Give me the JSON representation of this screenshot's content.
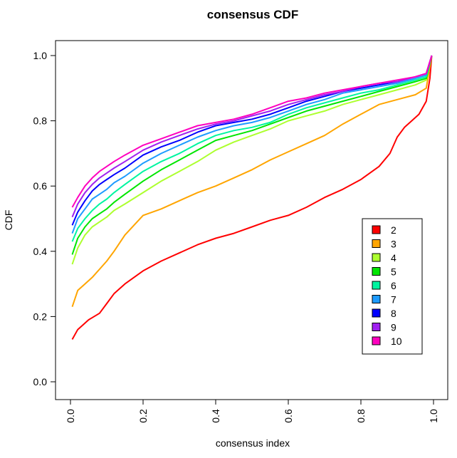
{
  "chart_data": {
    "type": "line",
    "title": "consensus CDF",
    "xlabel": "consensus index",
    "ylabel": "CDF",
    "xlim": [
      0,
      1
    ],
    "ylim": [
      0,
      1
    ],
    "x_ticks": [
      "0.0",
      "0.2",
      "0.4",
      "0.6",
      "0.8",
      "1.0"
    ],
    "y_ticks": [
      "0.0",
      "0.2",
      "0.4",
      "0.6",
      "0.8",
      "1.0"
    ],
    "legend_position": "right-center",
    "series": [
      {
        "name": "2",
        "color": "#ff0000",
        "x": [
          0.005,
          0.02,
          0.05,
          0.08,
          0.1,
          0.12,
          0.15,
          0.2,
          0.25,
          0.3,
          0.35,
          0.4,
          0.45,
          0.5,
          0.55,
          0.6,
          0.65,
          0.7,
          0.75,
          0.8,
          0.85,
          0.88,
          0.9,
          0.92,
          0.94,
          0.96,
          0.98,
          0.99,
          0.995
        ],
        "y": [
          0.13,
          0.16,
          0.19,
          0.21,
          0.24,
          0.27,
          0.3,
          0.34,
          0.37,
          0.395,
          0.42,
          0.44,
          0.455,
          0.475,
          0.495,
          0.51,
          0.535,
          0.565,
          0.59,
          0.62,
          0.66,
          0.7,
          0.75,
          0.78,
          0.8,
          0.82,
          0.86,
          0.93,
          1.0
        ]
      },
      {
        "name": "3",
        "color": "#ffa500",
        "x": [
          0.005,
          0.02,
          0.04,
          0.06,
          0.08,
          0.1,
          0.12,
          0.15,
          0.2,
          0.25,
          0.3,
          0.35,
          0.4,
          0.45,
          0.5,
          0.55,
          0.6,
          0.65,
          0.7,
          0.75,
          0.8,
          0.85,
          0.9,
          0.95,
          0.98,
          0.995
        ],
        "y": [
          0.23,
          0.28,
          0.3,
          0.32,
          0.345,
          0.37,
          0.4,
          0.45,
          0.51,
          0.53,
          0.555,
          0.58,
          0.6,
          0.625,
          0.65,
          0.68,
          0.705,
          0.73,
          0.755,
          0.79,
          0.82,
          0.85,
          0.865,
          0.88,
          0.9,
          1.0
        ]
      },
      {
        "name": "4",
        "color": "#adff2f",
        "x": [
          0.005,
          0.02,
          0.04,
          0.06,
          0.08,
          0.1,
          0.12,
          0.15,
          0.2,
          0.25,
          0.3,
          0.35,
          0.4,
          0.45,
          0.5,
          0.55,
          0.6,
          0.65,
          0.7,
          0.75,
          0.8,
          0.85,
          0.9,
          0.95,
          0.98,
          0.995
        ],
        "y": [
          0.36,
          0.41,
          0.45,
          0.475,
          0.49,
          0.505,
          0.525,
          0.545,
          0.58,
          0.615,
          0.645,
          0.675,
          0.71,
          0.735,
          0.755,
          0.775,
          0.8,
          0.815,
          0.83,
          0.85,
          0.865,
          0.88,
          0.895,
          0.91,
          0.925,
          1.0
        ]
      },
      {
        "name": "5",
        "color": "#00e600",
        "x": [
          0.005,
          0.02,
          0.04,
          0.06,
          0.08,
          0.1,
          0.12,
          0.15,
          0.2,
          0.25,
          0.3,
          0.35,
          0.4,
          0.45,
          0.5,
          0.55,
          0.6,
          0.65,
          0.7,
          0.75,
          0.8,
          0.85,
          0.9,
          0.95,
          0.98,
          0.995
        ],
        "y": [
          0.39,
          0.44,
          0.475,
          0.5,
          0.515,
          0.53,
          0.55,
          0.575,
          0.615,
          0.65,
          0.68,
          0.71,
          0.74,
          0.755,
          0.77,
          0.79,
          0.81,
          0.83,
          0.845,
          0.86,
          0.875,
          0.89,
          0.905,
          0.92,
          0.93,
          1.0
        ]
      },
      {
        "name": "6",
        "color": "#00f5a0",
        "x": [
          0.005,
          0.02,
          0.04,
          0.06,
          0.08,
          0.1,
          0.12,
          0.15,
          0.2,
          0.25,
          0.3,
          0.35,
          0.4,
          0.45,
          0.5,
          0.55,
          0.6,
          0.65,
          0.7,
          0.75,
          0.8,
          0.85,
          0.9,
          0.95,
          0.98,
          0.995
        ],
        "y": [
          0.43,
          0.47,
          0.5,
          0.525,
          0.545,
          0.56,
          0.58,
          0.605,
          0.645,
          0.675,
          0.7,
          0.73,
          0.755,
          0.77,
          0.78,
          0.795,
          0.82,
          0.84,
          0.855,
          0.87,
          0.885,
          0.895,
          0.91,
          0.925,
          0.935,
          1.0
        ]
      },
      {
        "name": "7",
        "color": "#1e9bff",
        "x": [
          0.005,
          0.02,
          0.04,
          0.06,
          0.08,
          0.1,
          0.12,
          0.15,
          0.2,
          0.25,
          0.3,
          0.35,
          0.4,
          0.45,
          0.5,
          0.55,
          0.6,
          0.65,
          0.7,
          0.75,
          0.8,
          0.85,
          0.9,
          0.95,
          0.98,
          0.995
        ],
        "y": [
          0.455,
          0.5,
          0.53,
          0.56,
          0.575,
          0.59,
          0.61,
          0.63,
          0.67,
          0.7,
          0.725,
          0.75,
          0.77,
          0.785,
          0.795,
          0.81,
          0.83,
          0.85,
          0.865,
          0.885,
          0.895,
          0.905,
          0.915,
          0.93,
          0.94,
          1.0
        ]
      },
      {
        "name": "8",
        "color": "#0000ff",
        "x": [
          0.005,
          0.02,
          0.04,
          0.06,
          0.08,
          0.1,
          0.12,
          0.15,
          0.2,
          0.25,
          0.3,
          0.35,
          0.4,
          0.45,
          0.5,
          0.55,
          0.6,
          0.65,
          0.7,
          0.75,
          0.8,
          0.85,
          0.9,
          0.95,
          0.98,
          0.995
        ],
        "y": [
          0.48,
          0.52,
          0.555,
          0.585,
          0.605,
          0.62,
          0.635,
          0.655,
          0.695,
          0.72,
          0.74,
          0.765,
          0.785,
          0.795,
          0.805,
          0.82,
          0.84,
          0.86,
          0.875,
          0.89,
          0.9,
          0.91,
          0.92,
          0.935,
          0.945,
          1.0
        ]
      },
      {
        "name": "9",
        "color": "#a020f0",
        "x": [
          0.005,
          0.02,
          0.04,
          0.06,
          0.08,
          0.1,
          0.12,
          0.15,
          0.2,
          0.25,
          0.3,
          0.35,
          0.4,
          0.45,
          0.5,
          0.55,
          0.6,
          0.65,
          0.7,
          0.75,
          0.8,
          0.85,
          0.9,
          0.95,
          0.98,
          0.995
        ],
        "y": [
          0.505,
          0.545,
          0.58,
          0.605,
          0.625,
          0.64,
          0.655,
          0.675,
          0.71,
          0.735,
          0.755,
          0.775,
          0.79,
          0.8,
          0.815,
          0.83,
          0.85,
          0.865,
          0.88,
          0.89,
          0.905,
          0.915,
          0.92,
          0.935,
          0.945,
          1.0
        ]
      },
      {
        "name": "10",
        "color": "#ff00bf",
        "x": [
          0.005,
          0.02,
          0.04,
          0.06,
          0.08,
          0.1,
          0.12,
          0.15,
          0.2,
          0.25,
          0.3,
          0.35,
          0.4,
          0.45,
          0.5,
          0.55,
          0.6,
          0.65,
          0.7,
          0.75,
          0.8,
          0.85,
          0.9,
          0.95,
          0.98,
          0.995
        ],
        "y": [
          0.535,
          0.565,
          0.6,
          0.625,
          0.645,
          0.66,
          0.675,
          0.695,
          0.725,
          0.745,
          0.765,
          0.785,
          0.795,
          0.805,
          0.82,
          0.84,
          0.86,
          0.87,
          0.885,
          0.895,
          0.905,
          0.915,
          0.925,
          0.935,
          0.945,
          1.0
        ]
      }
    ]
  }
}
